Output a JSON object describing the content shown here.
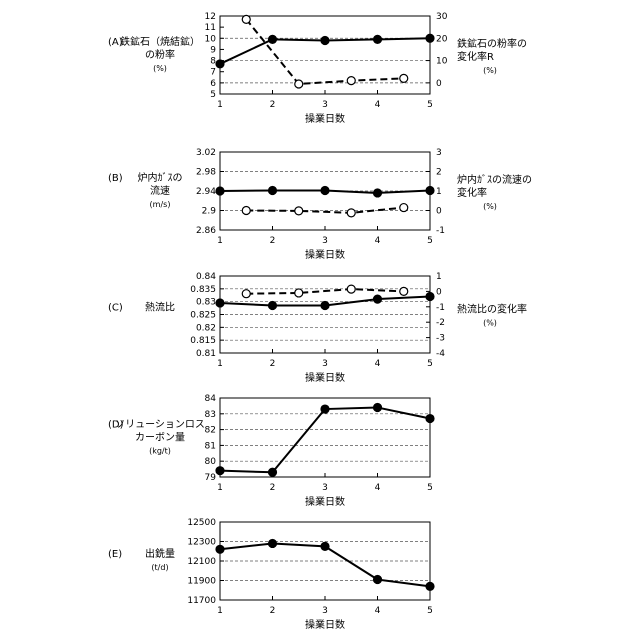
{
  "chart_data": [
    {
      "type": "line",
      "panel_label": "(A)",
      "ylabel_left": [
        "鉄鉱石（焼結鉱）",
        "の粉率"
      ],
      "ylabel_left_unit": "(%)",
      "ylabel_right": [
        "鉄鉱石の粉率の",
        "変化率R"
      ],
      "ylabel_right_unit": "(%)",
      "xlabel": "操業日数",
      "x_ticks": [
        1,
        2,
        3,
        4,
        5
      ],
      "ylim_left": [
        5,
        12
      ],
      "yticks_left": [
        5,
        6,
        7,
        8,
        9,
        10,
        11,
        12
      ],
      "ylim_right": [
        -5,
        30
      ],
      "yticks_right": [
        0,
        10,
        20,
        30
      ],
      "grid_y": [
        6,
        8,
        10
      ],
      "series": [
        {
          "axis": "left",
          "style": "solid-filled",
          "x": [
            1,
            2,
            3,
            4,
            5
          ],
          "values": [
            7.7,
            9.9,
            9.8,
            9.9,
            10.0
          ]
        },
        {
          "axis": "right",
          "style": "dashed-open",
          "x": [
            1.5,
            2.5,
            3.5,
            4.5
          ],
          "values": [
            28.5,
            -0.5,
            1.0,
            2.0
          ]
        }
      ]
    },
    {
      "type": "line",
      "panel_label": "(B)",
      "ylabel_left": [
        "炉内ｶﾞｽの",
        "流速"
      ],
      "ylabel_left_unit": "(m/s)",
      "ylabel_right": [
        "炉内ｶﾞｽの流速の",
        "変化率"
      ],
      "ylabel_right_unit": "(%)",
      "xlabel": "操業日数",
      "x_ticks": [
        1,
        2,
        3,
        4,
        5
      ],
      "ylim_left": [
        2.86,
        3.02
      ],
      "yticks_left": [
        2.86,
        2.9,
        2.94,
        2.98,
        3.02
      ],
      "ylim_right": [
        -1,
        3
      ],
      "yticks_right": [
        -1,
        0,
        1,
        2,
        3
      ],
      "grid_y": [
        2.9,
        2.94,
        2.98
      ],
      "series": [
        {
          "axis": "left",
          "style": "solid-filled",
          "x": [
            1,
            2,
            3,
            4,
            5
          ],
          "values": [
            2.94,
            2.941,
            2.941,
            2.936,
            2.941
          ]
        },
        {
          "axis": "right",
          "style": "dashed-open",
          "x": [
            1.5,
            2.5,
            3.5,
            4.5
          ],
          "values": [
            0.0,
            -0.02,
            -0.12,
            0.15
          ]
        }
      ]
    },
    {
      "type": "line",
      "panel_label": "(C)",
      "ylabel_left": [
        "熱流比"
      ],
      "ylabel_left_unit": "",
      "ylabel_right": [
        "熱流比の変化率"
      ],
      "ylabel_right_unit": "(%)",
      "xlabel": "操業日数",
      "x_ticks": [
        1,
        2,
        3,
        4,
        5
      ],
      "ylim_left": [
        0.81,
        0.84
      ],
      "yticks_left": [
        0.81,
        0.815,
        0.82,
        0.825,
        0.83,
        0.835,
        0.84
      ],
      "ylim_right": [
        -4,
        1
      ],
      "yticks_right": [
        -4,
        -3,
        -2,
        -1,
        0,
        1
      ],
      "grid_y": [
        0.815,
        0.82,
        0.825,
        0.83,
        0.835
      ],
      "series": [
        {
          "axis": "left",
          "style": "solid-filled",
          "x": [
            1,
            2,
            3,
            4,
            5
          ],
          "values": [
            0.8295,
            0.8285,
            0.8285,
            0.831,
            0.832
          ]
        },
        {
          "axis": "right",
          "style": "dashed-open",
          "x": [
            1.5,
            2.5,
            3.5,
            4.5
          ],
          "values": [
            -0.15,
            -0.1,
            0.15,
            0.0
          ]
        }
      ]
    },
    {
      "type": "line",
      "panel_label": "(D)",
      "ylabel_left": [
        "ソリューションロス",
        "カーボン量"
      ],
      "ylabel_left_unit": "(kg/t)",
      "ylabel_right": [],
      "ylabel_right_unit": "",
      "xlabel": "操業日数",
      "x_ticks": [
        1,
        2,
        3,
        4,
        5
      ],
      "ylim_left": [
        79,
        84
      ],
      "yticks_left": [
        79,
        80,
        81,
        82,
        83,
        84
      ],
      "ylim_right": null,
      "yticks_right": [],
      "grid_y": [
        80,
        81,
        82,
        83
      ],
      "series": [
        {
          "axis": "left",
          "style": "solid-filled",
          "x": [
            1,
            2,
            3,
            4,
            5
          ],
          "values": [
            79.4,
            79.3,
            83.3,
            83.4,
            82.7
          ]
        }
      ]
    },
    {
      "type": "line",
      "panel_label": "(E)",
      "ylabel_left": [
        "出銑量"
      ],
      "ylabel_left_unit": "(t/d)",
      "ylabel_right": [],
      "ylabel_right_unit": "",
      "xlabel": "操業日数",
      "x_ticks": [
        1,
        2,
        3,
        4,
        5
      ],
      "ylim_left": [
        11700,
        12500
      ],
      "yticks_left": [
        11700,
        11900,
        12100,
        12300,
        12500
      ],
      "ylim_right": null,
      "yticks_right": [],
      "grid_y": [
        11900,
        12100,
        12300
      ],
      "series": [
        {
          "axis": "left",
          "style": "solid-filled",
          "x": [
            1,
            2,
            3,
            4,
            5
          ],
          "values": [
            12220,
            12280,
            12250,
            11910,
            11840
          ]
        }
      ]
    }
  ]
}
